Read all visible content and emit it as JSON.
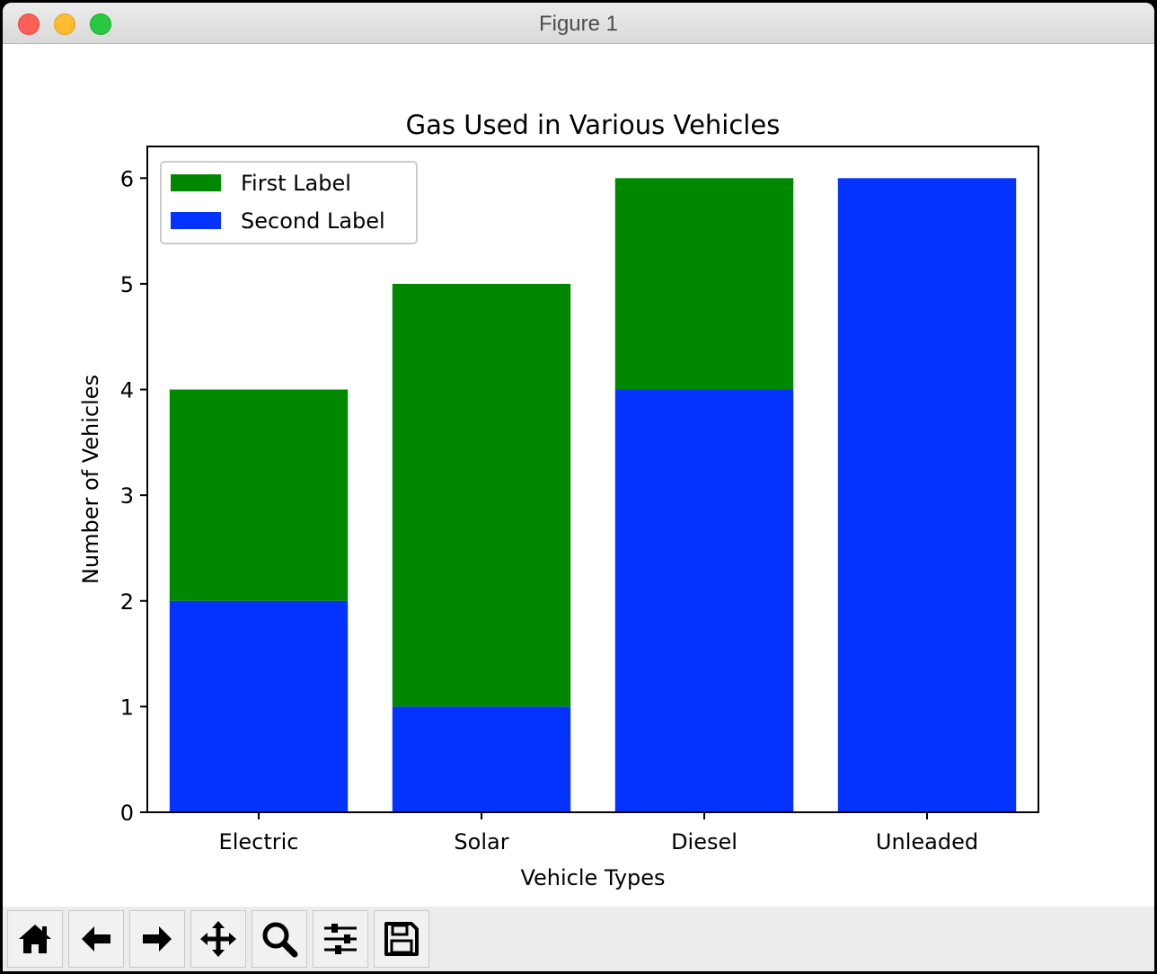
{
  "window": {
    "title": "Figure 1"
  },
  "toolbar": {
    "buttons": [
      {
        "icon": "home-icon"
      },
      {
        "icon": "back-arrow-icon"
      },
      {
        "icon": "forward-arrow-icon"
      },
      {
        "icon": "pan-move-icon"
      },
      {
        "icon": "zoom-magnifier-icon"
      },
      {
        "icon": "configure-sliders-icon"
      },
      {
        "icon": "save-floppy-icon"
      }
    ]
  },
  "chart_data": {
    "type": "bar",
    "stacked": true,
    "title": "Gas Used in Various Vehicles",
    "xlabel": "Vehicle Types",
    "ylabel": "Number of Vehicles",
    "categories": [
      "Electric",
      "Solar",
      "Diesel",
      "Unleaded"
    ],
    "ylim": [
      0,
      6.3
    ],
    "yticks": [
      0,
      1,
      2,
      3,
      4,
      5,
      6
    ],
    "grid": false,
    "legend_position": "top-left",
    "series": [
      {
        "name": "First Label",
        "values": [
          2,
          4,
          2,
          0
        ],
        "color": "#008800"
      },
      {
        "name": "Second Label",
        "values": [
          2,
          1,
          4,
          6
        ],
        "color": "#0433ff"
      }
    ],
    "stack_order": [
      "Second Label",
      "First Label"
    ]
  }
}
